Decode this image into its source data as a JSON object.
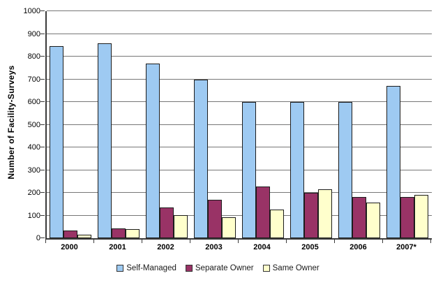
{
  "chart_data": {
    "type": "bar",
    "title": "",
    "xlabel": "",
    "ylabel": "Number of Facility-Surveys",
    "ylim": [
      0,
      1000
    ],
    "ytick_step": 100,
    "grid": true,
    "legend_position": "bottom",
    "categories": [
      "2000",
      "2001",
      "2002",
      "2003",
      "2004",
      "2005",
      "2006",
      "2007*"
    ],
    "series": [
      {
        "name": "Self-Managed",
        "color": "#9ECAF2",
        "values": [
          845,
          858,
          770,
          700,
          600,
          600,
          600,
          670
        ]
      },
      {
        "name": "Separate Owner",
        "color": "#993366",
        "values": [
          33,
          44,
          134,
          170,
          228,
          200,
          181,
          183
        ]
      },
      {
        "name": "Same Owner",
        "color": "#FFFFCC",
        "values": [
          15,
          39,
          103,
          91,
          127,
          216,
          158,
          192
        ]
      }
    ],
    "yticks": [
      0,
      100,
      200,
      300,
      400,
      500,
      600,
      700,
      800,
      900,
      1000
    ]
  },
  "colors": {
    "background": "#FFFFFF",
    "gridline": "#777777",
    "axis": "#3A3A3A",
    "bar_border": "#1C1C1C",
    "text": "#000000"
  }
}
